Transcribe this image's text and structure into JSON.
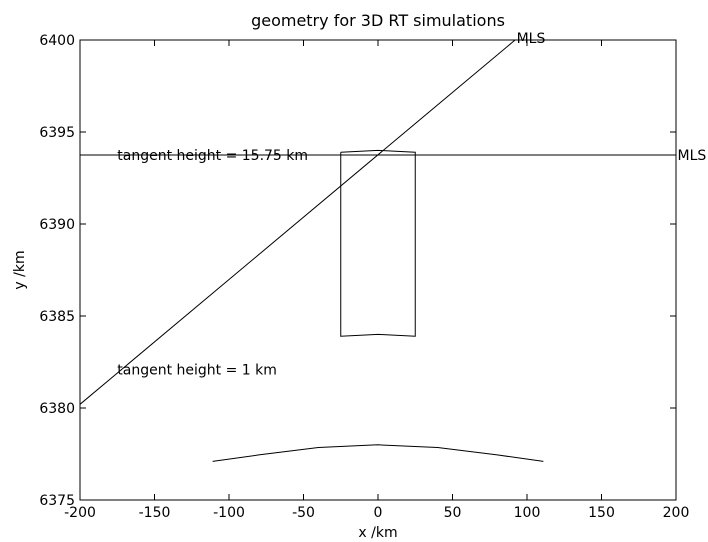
{
  "chart_data": {
    "type": "line",
    "title": "geometry for 3D RT simulations",
    "xlabel": "x /km",
    "ylabel": "y /km",
    "xlim": [
      -200,
      200
    ],
    "ylim": [
      6375,
      6400
    ],
    "xticks": [
      -200,
      -150,
      -100,
      -50,
      0,
      50,
      100,
      150,
      200
    ],
    "yticks": [
      6375,
      6380,
      6385,
      6390,
      6395,
      6400
    ],
    "grid": false,
    "series": [
      {
        "points": [
          [
            -200,
            6380.2
          ],
          [
            92,
            6400
          ]
        ]
      },
      {
        "points": [
          [
            -200,
            6393.75
          ],
          [
            200,
            6393.75
          ]
        ]
      },
      {
        "points": [
          [
            -25,
            6393.9
          ],
          [
            0,
            6394.0
          ],
          [
            25,
            6393.9
          ],
          [
            25,
            6383.9
          ],
          [
            0,
            6384.0
          ],
          [
            -25,
            6383.9
          ],
          [
            -25,
            6393.9
          ]
        ]
      },
      {
        "points": [
          [
            -111,
            6377.1
          ],
          [
            -80,
            6377.45
          ],
          [
            -40,
            6377.85
          ],
          [
            0,
            6378.0
          ],
          [
            40,
            6377.85
          ],
          [
            80,
            6377.45
          ],
          [
            111,
            6377.1
          ]
        ]
      }
    ],
    "annotations": [
      {
        "text": "MLS",
        "x": 93,
        "y": 6400.1
      },
      {
        "text": "MLS",
        "x": 201,
        "y": 6393.75
      },
      {
        "text": "tangent height = 15.75 km",
        "x": -175,
        "y": 6393.75
      },
      {
        "text": "tangent height = 1 km",
        "x": -175,
        "y": 6382.1
      }
    ]
  }
}
